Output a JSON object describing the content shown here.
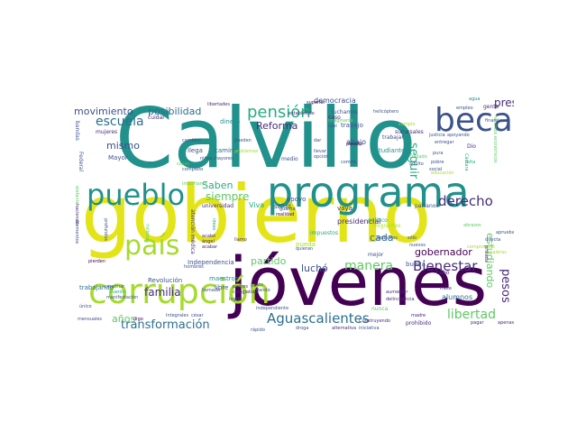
{
  "palette": {
    "yellow": "#e3e418",
    "lime": "#a6db2d",
    "green": "#5ec962",
    "teal": "#21918c",
    "blue": "#2b6f8e",
    "purple": "#440154",
    "indigo": "#472c7a",
    "navy": "#3b528b",
    "sea": "#27ad81"
  },
  "words": [
    {
      "text": "Calvillo",
      "color": "teal",
      "size": 92
    },
    {
      "text": "gobierno",
      "color": "yellow",
      "size": 88
    },
    {
      "text": "jóvenes",
      "color": "purple",
      "size": 74
    },
    {
      "text": "programa",
      "color": "teal",
      "size": 46
    },
    {
      "text": "corrupción",
      "color": "lime",
      "size": 38
    },
    {
      "text": "beca",
      "color": "navy",
      "size": 36
    },
    {
      "text": "pueblo",
      "color": "teal",
      "size": 32
    },
    {
      "text": "país",
      "color": "lime",
      "size": 30
    },
    {
      "text": "pensión",
      "color": "sea",
      "size": 18
    },
    {
      "text": "Aguascalientes",
      "color": "blue",
      "size": 15
    },
    {
      "text": "escuela",
      "color": "blue",
      "size": 14
    },
    {
      "text": "derecho",
      "color": "indigo",
      "size": 15
    },
    {
      "text": "manera",
      "color": "green",
      "size": 14
    },
    {
      "text": "Bienestar",
      "color": "indigo",
      "size": 15
    },
    {
      "text": "libertad",
      "color": "green",
      "size": 14
    },
    {
      "text": "familia",
      "color": "indigo",
      "size": 12
    },
    {
      "text": "transformación",
      "color": "blue",
      "size": 13
    },
    {
      "text": "movimiento",
      "color": "navy",
      "size": 11
    },
    {
      "text": "posibilidad",
      "color": "blue",
      "size": 11
    },
    {
      "text": "mismo",
      "color": "navy",
      "size": 11
    },
    {
      "text": "siempre",
      "color": "green",
      "size": 12
    },
    {
      "text": "Saben",
      "color": "sea",
      "size": 11
    },
    {
      "text": "Reforma",
      "color": "indigo",
      "size": 11
    },
    {
      "text": "seguir",
      "color": "sea",
      "size": 13
    },
    {
      "text": "presupuesto",
      "color": "indigo",
      "size": 12
    },
    {
      "text": "gobernador",
      "color": "purple",
      "size": 11
    },
    {
      "text": "estudiando",
      "color": "green",
      "size": 11
    },
    {
      "text": "pesos",
      "color": "indigo",
      "size": 13
    },
    {
      "text": "partido",
      "color": "green",
      "size": 11
    },
    {
      "text": "luchó",
      "color": "navy",
      "size": 11
    },
    {
      "text": "cada",
      "color": "blue",
      "size": 11
    },
    {
      "text": "años",
      "color": "green",
      "size": 11
    },
    {
      "text": "democracia",
      "color": "navy",
      "size": 8
    },
    {
      "text": "presidencial",
      "color": "indigo",
      "size": 8
    },
    {
      "text": "Independencia",
      "color": "navy",
      "size": 7
    },
    {
      "text": "Revolución",
      "color": "navy",
      "size": 7
    },
    {
      "text": "alumnos",
      "color": "blue",
      "size": 8
    },
    {
      "text": "buena",
      "color": "navy",
      "size": 7
    },
    {
      "text": "abajo",
      "color": "navy",
      "size": 8
    },
    {
      "text": "camino",
      "color": "blue",
      "size": 7
    },
    {
      "text": "Viva",
      "color": "sea",
      "size": 8
    },
    {
      "text": "maestros",
      "color": "teal",
      "size": 7
    },
    {
      "text": "estudiante",
      "color": "teal",
      "size": 7
    },
    {
      "text": "trabajo",
      "color": "navy",
      "size": 7
    },
    {
      "text": "dinero",
      "color": "teal",
      "size": 7
    },
    {
      "text": "mujeres",
      "color": "indigo",
      "size": 6
    },
    {
      "text": "cuidar",
      "color": "indigo",
      "size": 6
    },
    {
      "text": "trabajando",
      "color": "blue",
      "size": 7
    },
    {
      "text": "sucursales",
      "color": "indigo",
      "size": 6
    },
    {
      "text": "luchamos",
      "color": "navy",
      "size": 6
    },
    {
      "text": "caso",
      "color": "indigo",
      "size": 6
    },
    {
      "text": "mejor",
      "color": "navy",
      "size": 6
    },
    {
      "text": "apoyo",
      "color": "navy",
      "size": 7
    },
    {
      "text": "universidad",
      "color": "indigo",
      "size": 6
    },
    {
      "text": "vaya",
      "color": "indigo",
      "size": 7
    },
    {
      "text": "pueda",
      "color": "lime",
      "size": 7
    },
    {
      "text": "impuestos",
      "color": "sea",
      "size": 6
    },
    {
      "text": "paisanos",
      "color": "navy",
      "size": 6
    },
    {
      "text": "trabajar",
      "color": "navy",
      "size": 6
    },
    {
      "text": "nunca",
      "color": "green",
      "size": 6
    },
    {
      "text": "ideas",
      "color": "sea",
      "size": 5
    },
    {
      "text": "gente",
      "color": "indigo",
      "size": 6
    },
    {
      "text": "agua",
      "color": "teal",
      "size": 5
    },
    {
      "text": "empleo",
      "color": "navy",
      "size": 5
    },
    {
      "text": "bandas",
      "color": "navy",
      "size": 6
    },
    {
      "text": "elefante",
      "color": "green",
      "size": 5
    },
    {
      "text": "haciendo",
      "color": "indigo",
      "size": 5
    },
    {
      "text": "elementos",
      "color": "navy",
      "size": 5
    },
    {
      "text": "profundos",
      "color": "navy",
      "size": 5
    },
    {
      "text": "pierden",
      "color": "purple",
      "size": 5
    },
    {
      "text": "construir",
      "color": "navy",
      "size": 5
    },
    {
      "text": "cuento",
      "color": "sea",
      "size": 5
    },
    {
      "text": "manifestación",
      "color": "navy",
      "size": 5
    },
    {
      "text": "único",
      "color": "navy",
      "size": 5
    },
    {
      "text": "mensuales",
      "color": "navy",
      "size": 5
    },
    {
      "text": "Mayor",
      "color": "navy",
      "size": 7
    },
    {
      "text": "Federal",
      "color": "navy",
      "size": 6
    },
    {
      "text": "llega",
      "color": "navy",
      "size": 7
    },
    {
      "text": "salud",
      "color": "navy",
      "size": 7
    },
    {
      "text": "cabo",
      "color": "indigo",
      "size": 6
    },
    {
      "text": "medio",
      "color": "navy",
      "size": 6
    },
    {
      "text": "Dio",
      "color": "indigo",
      "size": 6
    },
    {
      "text": "libre",
      "color": "navy",
      "size": 7
    },
    {
      "text": "acabó",
      "color": "indigo",
      "size": 5
    },
    {
      "text": "ángel",
      "color": "indigo",
      "size": 5
    },
    {
      "text": "acabar",
      "color": "indigo",
      "size": 5
    },
    {
      "text": "madre",
      "color": "indigo",
      "size": 5
    },
    {
      "text": "prohibido",
      "color": "indigo",
      "size": 6
    },
    {
      "text": "atención médica",
      "color": "indigo",
      "size": 6
    },
    {
      "text": "llamada",
      "color": "navy",
      "size": 5
    },
    {
      "text": "hombres",
      "color": "navy",
      "size": 5
    },
    {
      "text": "Integrales",
      "color": "navy",
      "size": 5
    },
    {
      "text": "gusto",
      "color": "navy",
      "size": 5
    },
    {
      "text": "dando",
      "color": "navy",
      "size": 5
    },
    {
      "text": "nuevos",
      "color": "navy",
      "size": 5
    },
    {
      "text": "sólo",
      "color": "navy",
      "size": 5
    },
    {
      "text": "podemos",
      "color": "navy",
      "size": 5
    },
    {
      "text": "migrantes",
      "color": "lime",
      "size": 6
    },
    {
      "text": "político",
      "color": "sea",
      "size": 6
    },
    {
      "text": "realidad",
      "color": "purple",
      "size": 5
    },
    {
      "text": "guarda",
      "color": "navy",
      "size": 5
    },
    {
      "text": "superior",
      "color": "purple",
      "size": 5
    },
    {
      "text": "libertades",
      "color": "indigo",
      "size": 5
    },
    {
      "text": "establecido",
      "color": "indigo",
      "size": 5
    },
    {
      "text": "imaginarse",
      "color": "green",
      "size": 5
    },
    {
      "text": "helicóptero",
      "color": "navy",
      "size": 5
    },
    {
      "text": "recursos económicos",
      "color": "green",
      "size": 5
    },
    {
      "text": "Cámara",
      "color": "sea",
      "size": 5
    },
    {
      "text": "justicia",
      "color": "navy",
      "size": 5
    },
    {
      "text": "falta",
      "color": "sea",
      "size": 5
    },
    {
      "text": "social",
      "color": "navy",
      "size": 5
    },
    {
      "text": "directa",
      "color": "navy",
      "size": 5
    },
    {
      "text": "escaleras",
      "color": "lime",
      "size": 5
    },
    {
      "text": "compromiso",
      "color": "lime",
      "size": 5
    },
    {
      "text": "abrazos",
      "color": "green",
      "size": 5
    },
    {
      "text": "millones",
      "color": "green",
      "size": 5
    },
    {
      "text": "cosas",
      "color": "green",
      "size": 5
    },
    {
      "text": "pueden",
      "color": "navy",
      "size": 5
    },
    {
      "text": "completo",
      "color": "navy",
      "size": 5
    },
    {
      "text": "niños mayores",
      "color": "navy",
      "size": 5
    },
    {
      "text": "cambios",
      "color": "navy",
      "size": 5
    },
    {
      "text": "importante",
      "color": "green",
      "size": 5
    },
    {
      "text": "opción",
      "color": "navy",
      "size": 5
    },
    {
      "text": "problemas",
      "color": "lime",
      "size": 5
    },
    {
      "text": "pasado",
      "color": "purple",
      "size": 5
    },
    {
      "text": "comité",
      "color": "navy",
      "size": 5
    },
    {
      "text": "cuidado",
      "color": "green",
      "size": 5
    },
    {
      "text": "adulto",
      "color": "navy",
      "size": 5
    },
    {
      "text": "pura",
      "color": "navy",
      "size": 5
    },
    {
      "text": "entregar",
      "color": "navy",
      "size": 5
    },
    {
      "text": "apoyando",
      "color": "navy",
      "size": 5
    },
    {
      "text": "aprueba",
      "color": "navy",
      "size": 5
    },
    {
      "text": "privada",
      "color": "indigo",
      "size": 5
    },
    {
      "text": "mete",
      "color": "indigo",
      "size": 5
    },
    {
      "text": "Construyendo",
      "color": "indigo",
      "size": 5
    },
    {
      "text": "iniciativa",
      "color": "navy",
      "size": 5
    },
    {
      "text": "droga",
      "color": "navy",
      "size": 5
    },
    {
      "text": "alternativa",
      "color": "indigo",
      "size": 5
    },
    {
      "text": "delincuencia",
      "color": "indigo",
      "size": 5
    },
    {
      "text": "aumentar",
      "color": "indigo",
      "size": 5
    },
    {
      "text": "pagar",
      "color": "indigo",
      "size": 5
    },
    {
      "text": "apenas",
      "color": "indigo",
      "size": 5
    },
    {
      "text": "llamo",
      "color": "indigo",
      "size": 5
    },
    {
      "text": "quieran",
      "color": "navy",
      "size": 5
    },
    {
      "text": "padres",
      "color": "indigo",
      "size": 5
    },
    {
      "text": "colegiatura",
      "color": "indigo",
      "size": 5
    },
    {
      "text": "logró",
      "color": "navy",
      "size": 5
    },
    {
      "text": "independiente",
      "color": "navy",
      "size": 5
    },
    {
      "text": "digo",
      "color": "purple",
      "size": 5
    },
    {
      "text": "césar",
      "color": "navy",
      "size": 5
    },
    {
      "text": "rápido",
      "color": "navy",
      "size": 5
    },
    {
      "text": "educación",
      "color": "lime",
      "size": 5
    },
    {
      "text": "cumplo",
      "color": "lime",
      "size": 5
    },
    {
      "text": "dar",
      "color": "navy",
      "size": 5
    },
    {
      "text": "llevar",
      "color": "navy",
      "size": 5
    },
    {
      "text": "financieros",
      "color": "navy",
      "size": 5
    },
    {
      "text": "pobre",
      "color": "navy",
      "size": 5
    },
    {
      "text": "casi",
      "color": "navy",
      "size": 5
    }
  ]
}
